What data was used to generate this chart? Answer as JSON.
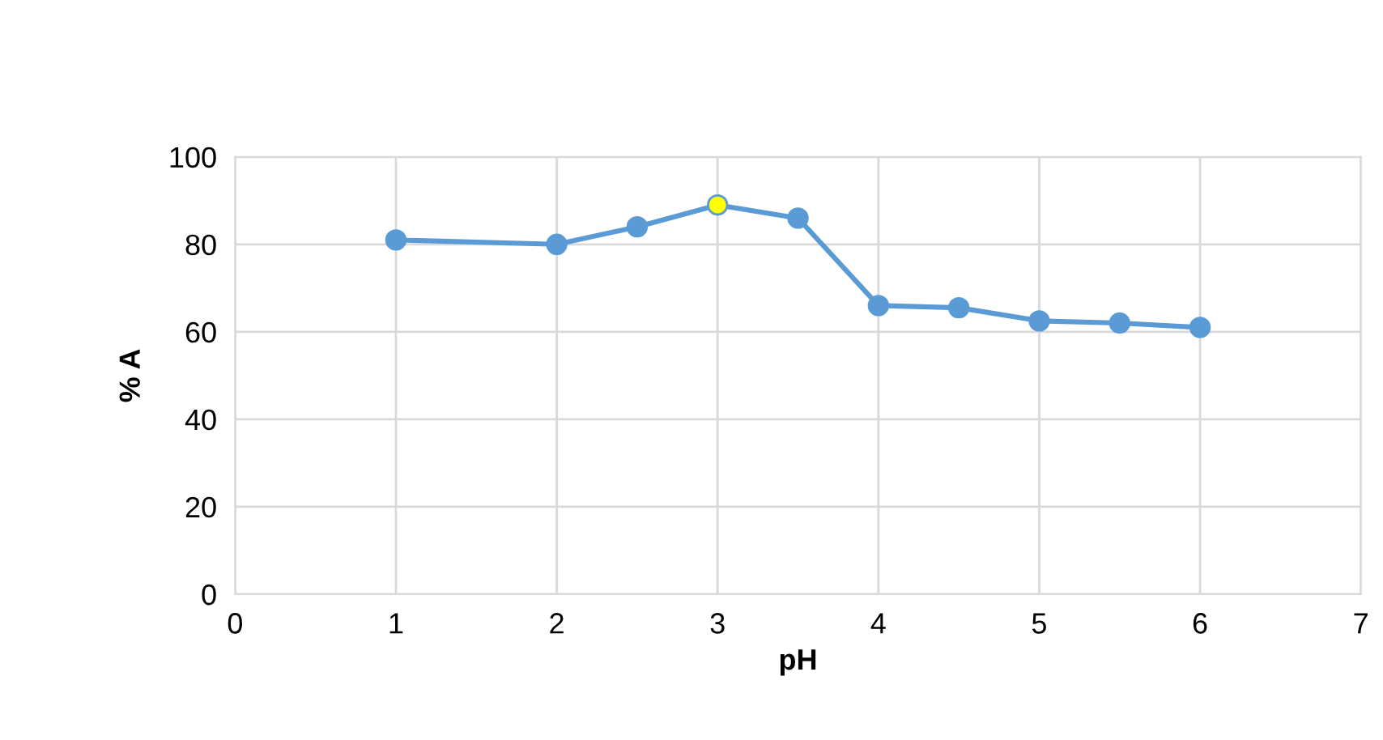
{
  "chart_data": {
    "type": "line",
    "xlabel": "pH",
    "ylabel": "% A",
    "x": [
      1,
      2,
      2.5,
      3,
      3.5,
      4,
      4.5,
      5,
      5.5,
      6
    ],
    "series": [
      {
        "color": "#5b9bd5",
        "colors": [
          "#5b9bd5",
          "#5b9bd5",
          "#5b9bd5",
          "#ffff00",
          "#5b9bd5",
          "#5b9bd5",
          "#5b9bd5",
          "#5b9bd5",
          "#5b9bd5",
          "#5b9bd5"
        ],
        "values": [
          81,
          80,
          84,
          89,
          86,
          66,
          65.5,
          62.5,
          62,
          61
        ]
      }
    ],
    "xlim": [
      0,
      7
    ],
    "xticks": [
      0,
      1,
      2,
      3,
      4,
      5,
      6,
      7
    ],
    "ylim": [
      0,
      100
    ],
    "yticks": [
      0,
      20,
      40,
      60,
      80,
      100
    ],
    "grid": true,
    "marker": "circle",
    "line_style": "solid",
    "legend": false
  }
}
